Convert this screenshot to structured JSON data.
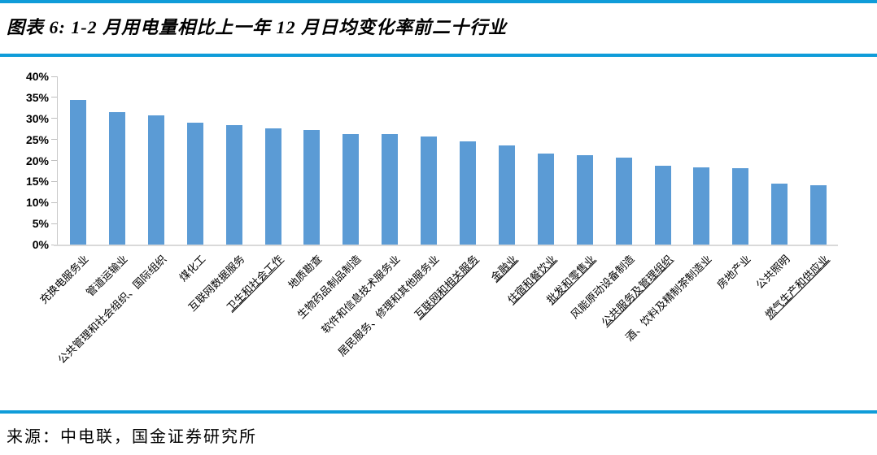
{
  "header": {
    "title": "图表 6: 1-2 月用电量相比上一年 12 月日均变化率前二十行业"
  },
  "footer": {
    "source": "来源：中电联，国金证券研究所"
  },
  "colors": {
    "accent_rule": "#0f9cd9",
    "bar": "#5b9bd5",
    "axis_line": "#d9d9d9",
    "tick": "#bfbfbf",
    "text": "#000000"
  },
  "chart_data": {
    "type": "bar",
    "title": "1-2 月用电量相比上一年 12 月日均变化率前二十行业",
    "categories": [
      "充换电服务业",
      "管道运输业",
      "公共管理和社会组织、国际组织",
      "煤化工",
      "互联网数据服务",
      "卫生和社会工作",
      "地质勘查",
      "生物药品制品制造",
      "软件和信息技术服务业",
      "居民服务、修理和其他服务业",
      "互联网和相关服务",
      "金融业",
      "住宿和餐饮业",
      "批发和零售业",
      "风能原动设备制造",
      "公共服务及管理组织",
      "酒、饮料及精制茶制造业",
      "房地产业",
      "公共照明",
      "燃气生产和供应业"
    ],
    "values": [
      34.4,
      31.5,
      30.7,
      29.0,
      28.4,
      27.6,
      27.3,
      26.3,
      26.2,
      25.7,
      24.6,
      23.6,
      21.7,
      21.3,
      20.6,
      18.7,
      18.4,
      18.2,
      14.5,
      14.1
    ],
    "underlined_categories": [
      false,
      false,
      false,
      false,
      false,
      true,
      false,
      false,
      false,
      false,
      true,
      true,
      true,
      true,
      false,
      true,
      false,
      false,
      false,
      true
    ],
    "xlabel": "",
    "ylabel": "",
    "ylim": [
      0,
      40
    ],
    "ytick_step": 5,
    "ytick_labels": [
      "0%",
      "5%",
      "10%",
      "15%",
      "20%",
      "25%",
      "30%",
      "35%",
      "40%"
    ],
    "x_label_rotation_deg": 45,
    "grid": false,
    "legend": false,
    "bar_color": "#5b9bd5"
  }
}
